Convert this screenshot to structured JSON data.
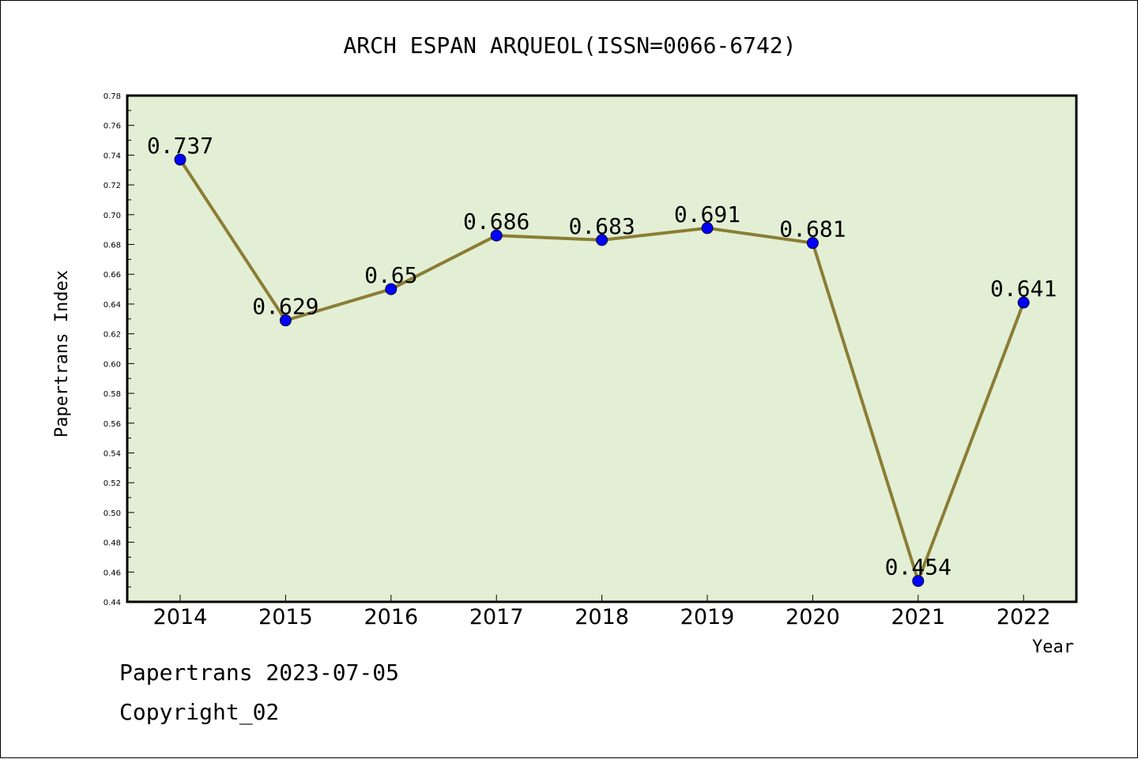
{
  "chart_data": {
    "type": "line",
    "title": "ARCH ESPAN ARQUEOL(ISSN=0066-6742)",
    "xlabel": "Year",
    "ylabel": "Papertrans Index",
    "categories": [
      "2014",
      "2015",
      "2016",
      "2017",
      "2018",
      "2019",
      "2020",
      "2021",
      "2022"
    ],
    "series": [
      {
        "values": [
          0.737,
          0.629,
          0.65,
          0.686,
          0.683,
          0.691,
          0.681,
          0.454,
          0.641
        ],
        "labels": [
          "0.737",
          "0.629",
          "0.65",
          "0.686",
          "0.683",
          "0.691",
          "0.681",
          "0.454",
          "0.641"
        ]
      }
    ],
    "ylim": [
      0.44,
      0.78
    ],
    "yticks": [
      "0.44",
      "0.46",
      "0.48",
      "0.50",
      "0.52",
      "0.54",
      "0.56",
      "0.58",
      "0.60",
      "0.62",
      "0.64",
      "0.66",
      "0.68",
      "0.70",
      "0.72",
      "0.74",
      "0.76",
      "0.78"
    ],
    "grid": false,
    "legend": "none",
    "colors": {
      "plot_background": "#e2efd4",
      "line": "#8b7d35",
      "marker": "#0000ff"
    }
  },
  "footer": {
    "line1": "Papertrans 2023-07-05",
    "line2": "Copyright_02"
  }
}
